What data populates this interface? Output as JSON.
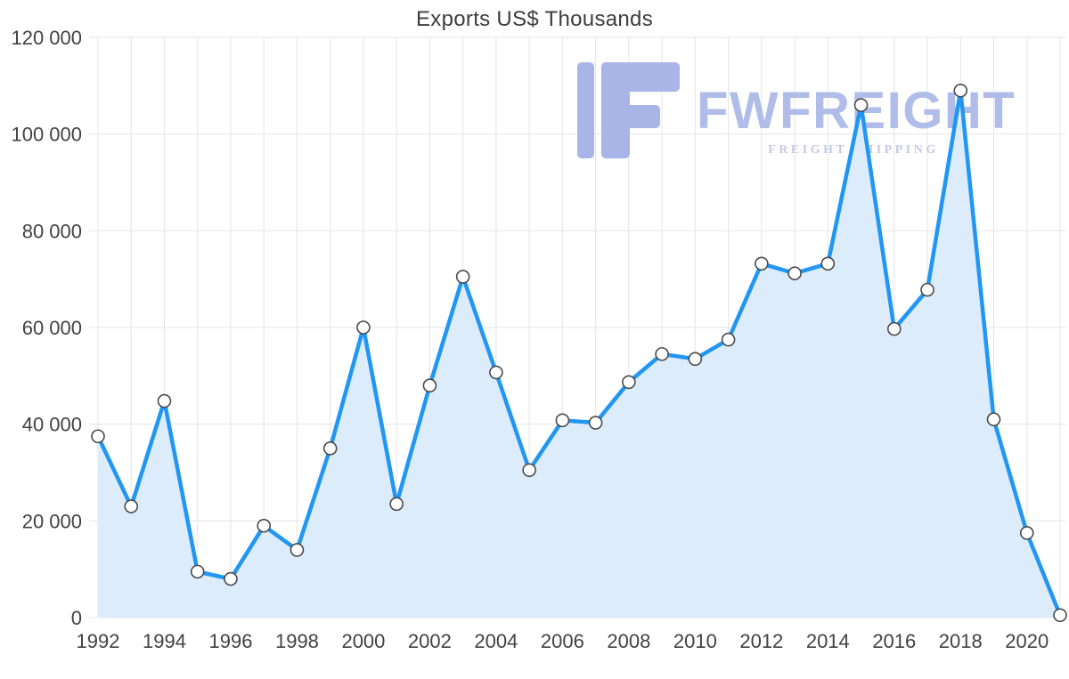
{
  "chart": {
    "title": "Exports US$ Thousands"
  },
  "watermark": {
    "brand": "FWFREIGHT",
    "tagline": "FREIGHT SHIPPING"
  },
  "colors": {
    "line": "#2196f3",
    "area": "#dcecfb",
    "marker_fill": "#ffffff",
    "marker_stroke": "#4a4a4a",
    "grid": "#e4e4e4",
    "axis_text": "#424242",
    "watermark_logo": "#a9b5e6",
    "watermark_brand": "#b1bde9",
    "watermark_tagline": "#c6c9e6"
  },
  "chart_data": {
    "type": "area",
    "title": "Exports US$ Thousands",
    "xlabel": "",
    "ylabel": "",
    "x": [
      1992,
      1993,
      1994,
      1995,
      1996,
      1997,
      1998,
      1999,
      2000,
      2001,
      2002,
      2003,
      2004,
      2005,
      2006,
      2007,
      2008,
      2009,
      2010,
      2011,
      2012,
      2013,
      2014,
      2015,
      2016,
      2017,
      2018,
      2019,
      2020,
      2021
    ],
    "values": [
      37500,
      23000,
      44800,
      9500,
      8000,
      19000,
      14000,
      35000,
      60000,
      23500,
      48000,
      70500,
      50700,
      30500,
      40800,
      40300,
      48700,
      54500,
      53500,
      57500,
      73200,
      71200,
      73200,
      106000,
      59700,
      67800,
      109000,
      41000,
      17500,
      500
    ],
    "ylim": [
      0,
      120000
    ],
    "y_ticks": [
      0,
      20000,
      40000,
      60000,
      80000,
      100000,
      120000
    ],
    "y_tick_labels": [
      "0",
      "20 000",
      "40 000",
      "60 000",
      "80 000",
      "100 000",
      "120 000"
    ],
    "x_tick_labels": [
      "1992",
      "1994",
      "1996",
      "1998",
      "2000",
      "2002",
      "2004",
      "2006",
      "2008",
      "2010",
      "2012",
      "2014",
      "2016",
      "2018",
      "2020"
    ],
    "grid": true,
    "legend": "none",
    "marker": "circle-white",
    "line_width": 4.5
  }
}
